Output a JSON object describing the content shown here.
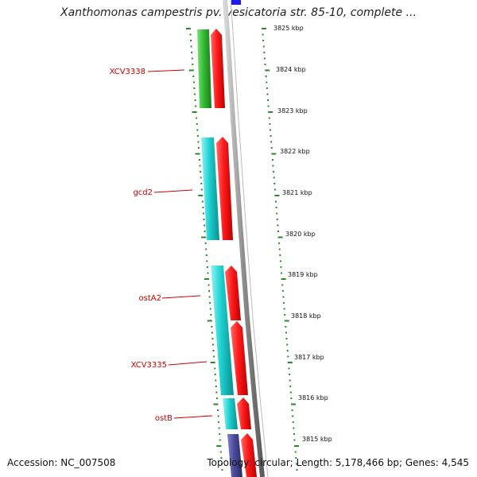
{
  "title": "Xanthomonas campestris pv. vesicatoria str. 85-10, complete ...",
  "accession_text": "Accession: NC_007508",
  "summary_text": "Topology: circular; Length: 5,178,466 bp; Genes: 4,545",
  "colors": {
    "forward_strand": "#ff1a1a",
    "cds_cyan": "#1fd0d0",
    "cds_green": "#33bb33",
    "cds_purple": "#4a4a9a",
    "label_red": "#cc0000",
    "tick_green": "#2a8a2a",
    "backbone_grey": "#8c8c8c",
    "position_marker": "#1a1aee"
  },
  "ticks": [
    "3825 kbp",
    "3824 kbp",
    "3823 kbp",
    "3822 kbp",
    "3821 kbp",
    "3820 kbp",
    "3819 kbp",
    "3818 kbp",
    "3817 kbp",
    "3816 kbp",
    "3815 kbp"
  ],
  "gene_labels": [
    "XCV3338",
    "gcd2",
    "ostA2",
    "XCV3335",
    "ostB"
  ]
}
